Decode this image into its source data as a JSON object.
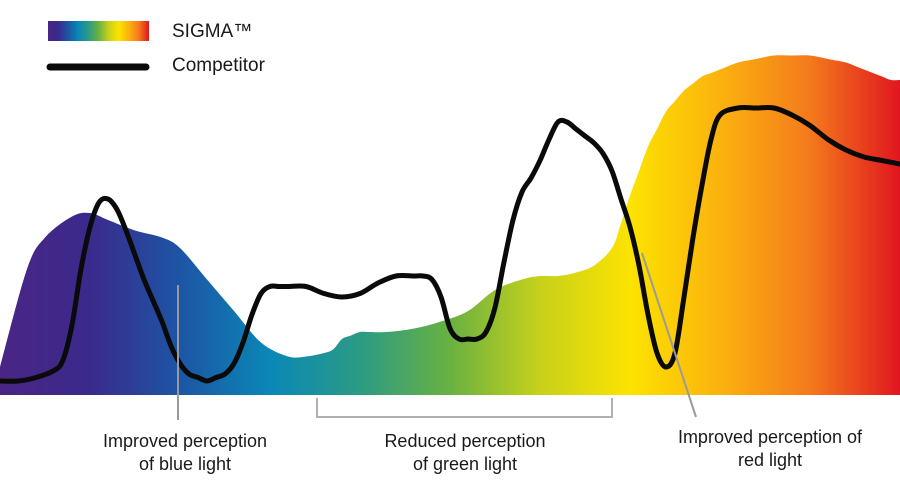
{
  "chart_data": {
    "type": "area",
    "title": "",
    "xlabel": "",
    "ylabel": "",
    "grid": false,
    "xlim": [
      0,
      100
    ],
    "ylim": [
      0,
      100
    ],
    "legend": {
      "placement": "top-left",
      "entries": [
        {
          "name": "SIGMA™",
          "style": "spectrum-gradient-swatch"
        },
        {
          "name": "Competitor",
          "style": "black-line"
        }
      ]
    },
    "series": [
      {
        "name": "SIGMA™",
        "kind": "area",
        "x": [
          0,
          3,
          5,
          8,
          10,
          12,
          15,
          18,
          20,
          23,
          26,
          29,
          32,
          34,
          36,
          37,
          38,
          39,
          40,
          41,
          43,
          46,
          49,
          52,
          55,
          58,
          60,
          62,
          64,
          66,
          68,
          69,
          70,
          71,
          72,
          73,
          74,
          75,
          76,
          77,
          78,
          79,
          80,
          82,
          84,
          86,
          88,
          90,
          92,
          94,
          95,
          96,
          97,
          98,
          99,
          100
        ],
        "values": [
          8,
          36,
          45,
          51,
          52,
          50,
          47,
          45,
          42,
          33,
          24,
          15,
          11,
          11,
          12,
          13,
          16,
          17,
          18,
          18,
          18,
          19,
          21,
          24,
          30,
          33,
          34,
          34,
          35,
          37,
          42,
          49,
          57,
          64,
          71,
          76,
          81,
          84,
          87,
          89,
          91,
          92,
          93,
          95,
          96,
          97,
          97,
          97,
          96,
          95,
          94,
          93,
          92,
          91,
          90,
          90
        ]
      },
      {
        "name": "Competitor",
        "kind": "line",
        "x": [
          0,
          2,
          4,
          6,
          7,
          8,
          9,
          10,
          11,
          12,
          13,
          14,
          15,
          16,
          17,
          18,
          19,
          20,
          21,
          22,
          23,
          24,
          25,
          26,
          27,
          28,
          29,
          30,
          31,
          32,
          34,
          36,
          38,
          40,
          42,
          44,
          46,
          47,
          48,
          49,
          50,
          51,
          52,
          53,
          54,
          55,
          56,
          57,
          58,
          59,
          60,
          61,
          62,
          63,
          64,
          65,
          66,
          67,
          68,
          69,
          70,
          71,
          72,
          73,
          74,
          75,
          76,
          77,
          78,
          79,
          80,
          82,
          84,
          86,
          88,
          90,
          92,
          94,
          96,
          98,
          100
        ],
        "values": [
          4,
          4,
          5,
          7,
          10,
          20,
          36,
          48,
          55,
          56,
          53,
          47,
          40,
          33,
          27,
          21,
          14,
          9,
          6,
          5,
          4,
          5,
          6,
          9,
          15,
          23,
          29,
          31,
          31,
          31,
          31,
          29,
          28,
          29,
          32,
          34,
          34,
          34,
          33,
          28,
          19,
          16,
          16,
          16,
          18,
          25,
          38,
          50,
          58,
          62,
          67,
          73,
          78,
          78,
          76,
          74,
          72,
          69,
          64,
          56,
          48,
          37,
          23,
          12,
          8,
          12,
          28,
          45,
          60,
          73,
          80,
          82,
          82,
          82,
          80,
          77,
          73,
          70,
          68,
          67,
          66
        ]
      }
    ],
    "annotations": [
      {
        "id": "blue",
        "line1": "Improved perception",
        "line2": "of blue light"
      },
      {
        "id": "green",
        "line1": "Reduced perception",
        "line2": "of green light"
      },
      {
        "id": "red",
        "line1": "Improved perception of",
        "line2": "red light"
      }
    ]
  },
  "colors": {
    "spectrum": [
      "#4a2584",
      "#3a2a8c",
      "#1d55a5",
      "#0a87b7",
      "#2c9b84",
      "#69b142",
      "#c7d11a",
      "#fce300",
      "#fbb20e",
      "#f47a1c",
      "#e0161f"
    ],
    "competitor_line": "#0a0a0a",
    "leader_line": "#9a9a9a",
    "bracket": "#b0b0b0"
  }
}
